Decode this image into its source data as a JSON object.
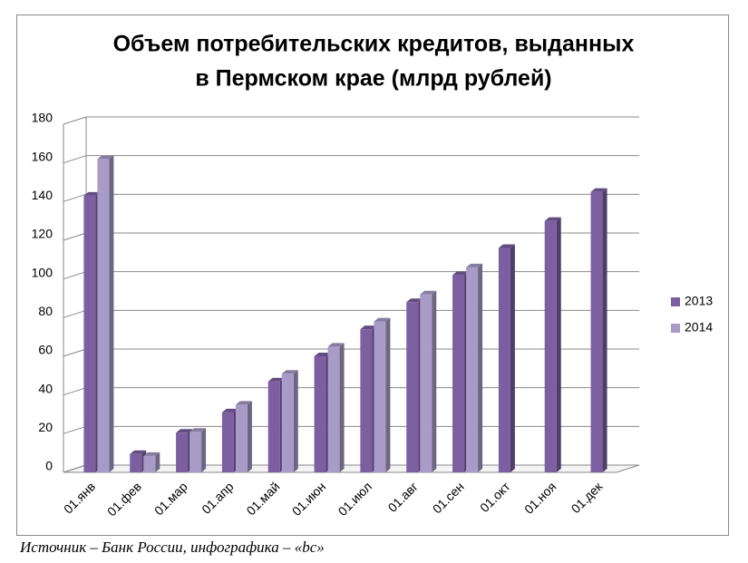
{
  "chart_data": {
    "type": "bar3d",
    "title": "Объем потребительских кредитов, выданных",
    "subtitle": "в Пермском крае (млрд рублей)",
    "categories": [
      "01.янв",
      "01.фев",
      "01.мар",
      "01.апр",
      "01.май",
      "01.июн",
      "01.июл",
      "01.авг",
      "01.сен",
      "01.окт",
      "01.ноя",
      "01.дек"
    ],
    "series": [
      {
        "name": "2013",
        "color": "#7b5fa0",
        "values": [
          143,
          9.5,
          20.5,
          31,
          47,
          60,
          74,
          88,
          102,
          116,
          130,
          145
        ]
      },
      {
        "name": "2014",
        "color": "#a89bc7",
        "values": [
          162,
          8.5,
          21,
          35,
          51,
          65,
          78,
          92,
          106,
          null,
          null,
          null
        ]
      }
    ],
    "ylim": [
      0,
      180
    ],
    "yticks": [
      0,
      20,
      40,
      60,
      80,
      100,
      120,
      140,
      160,
      180
    ],
    "grid": true,
    "legend": "right",
    "source": "Источник – Банк России, инфографика – «bc»"
  }
}
